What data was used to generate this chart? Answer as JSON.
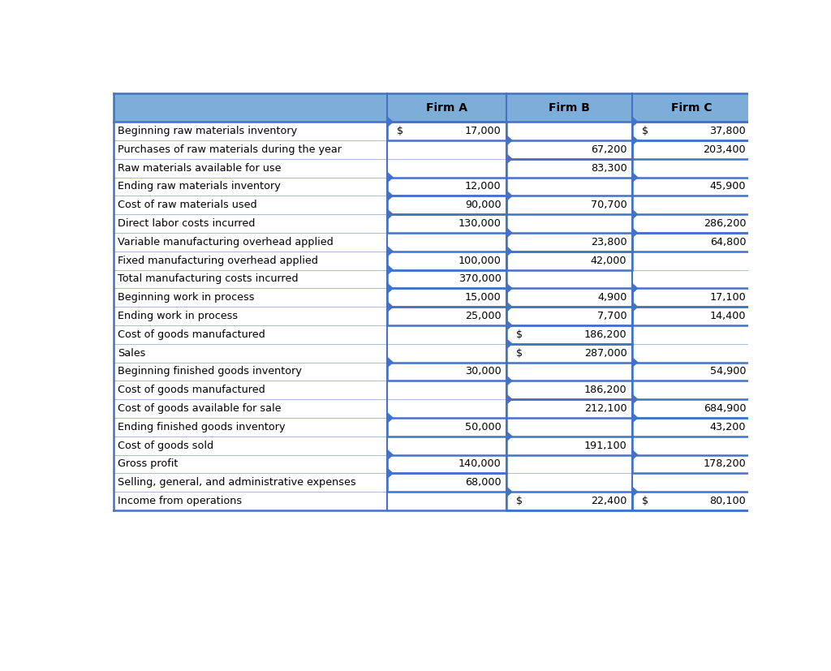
{
  "header": [
    "",
    "Firm A",
    "Firm B",
    "Firm C"
  ],
  "rows": [
    [
      "Beginning raw materials inventory",
      "$  17,000",
      "",
      "$  37,800"
    ],
    [
      "Purchases of raw materials during the year",
      "",
      "67,200",
      "203,400"
    ],
    [
      "Raw materials available for use",
      "",
      "83,300",
      ""
    ],
    [
      "Ending raw materials inventory",
      "12,000",
      "",
      "45,900"
    ],
    [
      "Cost of raw materials used",
      "90,000",
      "70,700",
      ""
    ],
    [
      "Direct labor costs incurred",
      "130,000",
      "",
      "286,200"
    ],
    [
      "Variable manufacturing overhead applied",
      "",
      "23,800",
      "64,800"
    ],
    [
      "Fixed manufacturing overhead applied",
      "100,000",
      "42,000",
      ""
    ],
    [
      "Total manufacturing costs incurred",
      "370,000",
      "",
      ""
    ],
    [
      "Beginning work in process",
      "15,000",
      "4,900",
      "17,100"
    ],
    [
      "Ending work in process",
      "25,000",
      "7,700",
      "14,400"
    ],
    [
      "Cost of goods manufactured",
      "",
      "$  186,200",
      ""
    ],
    [
      "Sales",
      "",
      "$  287,000",
      ""
    ],
    [
      "Beginning finished goods inventory",
      "30,000",
      "",
      "54,900"
    ],
    [
      "Cost of goods manufactured",
      "",
      "186,200",
      ""
    ],
    [
      "Cost of goods available for sale",
      "",
      "212,100",
      "684,900"
    ],
    [
      "Ending finished goods inventory",
      "50,000",
      "",
      "43,200"
    ],
    [
      "Cost of goods sold",
      "",
      "191,100",
      ""
    ],
    [
      "Gross profit",
      "140,000",
      "",
      "178,200"
    ],
    [
      "Selling, general, and administrative expenses",
      "68,000",
      "",
      ""
    ],
    [
      "Income from operations",
      "",
      "$  22,400",
      "$  80,100"
    ]
  ],
  "header_bg": "#7daed9",
  "border_color": "#4472c4",
  "cell_highlight": "#d0e4f5",
  "text_color": "#000000",
  "figsize": [
    10.24,
    8.27
  ],
  "dpi": 100,
  "font_size": 9.2,
  "header_font_size": 10.0
}
